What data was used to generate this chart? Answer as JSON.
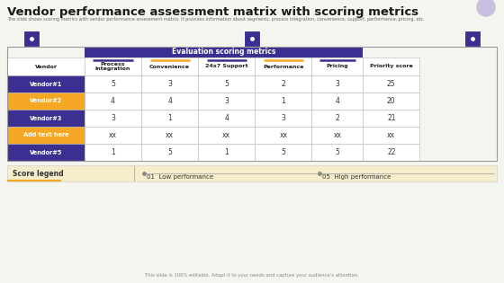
{
  "title": "Vendor performance assessment matrix with scoring metrics",
  "subtitle": "The slide shows scoring metrics with vendor performance assessment matrix. It provides information about segments, process integration, convenience, support, performance, pricing, etc.",
  "footer": "This slide is 100% editable. Adapt it to your needs and capture your audience’s attention.",
  "bg_color": "#f5f5f0",
  "header_bg": "#3b3091",
  "header_text": "Evaluation scoring metrics",
  "col_headers": [
    "Vendor",
    "Process\nintegration",
    "Convenience",
    "24x7 Support",
    "Performance",
    "Pricing",
    "Priority score"
  ],
  "rows": [
    {
      "name": "Vendor#1",
      "values": [
        "5",
        "3",
        "5",
        "2",
        "3",
        "25"
      ],
      "name_bg": "#3b3091",
      "name_color": "#ffffff"
    },
    {
      "name": "Vendor#2",
      "values": [
        "4",
        "4",
        "3",
        "1",
        "4",
        "20"
      ],
      "name_bg": "#f5a623",
      "name_color": "#ffffff"
    },
    {
      "name": "Vendor#3",
      "values": [
        "3",
        "1",
        "4",
        "3",
        "2",
        "21"
      ],
      "name_bg": "#3b3091",
      "name_color": "#ffffff"
    },
    {
      "name": "Add text here",
      "values": [
        "xx",
        "xx",
        "xx",
        "xx",
        "xx",
        "xx"
      ],
      "name_bg": "#f5a623",
      "name_color": "#ffffff"
    },
    {
      "name": "Vendor#5",
      "values": [
        "1",
        "5",
        "1",
        "5",
        "5",
        "22"
      ],
      "name_bg": "#3b3091",
      "name_color": "#ffffff"
    }
  ],
  "legend_label": "Score legend",
  "legend_low": "01  Low performance",
  "legend_high": "05  High performance",
  "legend_bg": "#f5edcc",
  "title_color": "#1a1a1a",
  "subtitle_color": "#666666",
  "col_underline_colors": [
    "#3b3091",
    "#f5a623",
    "#3b3091",
    "#f5a623",
    "#3b3091",
    "#f5a623"
  ],
  "table_border_color": "#bbbbbb",
  "icon_color": "#3b3091",
  "circle_color": "#cbbfe0"
}
